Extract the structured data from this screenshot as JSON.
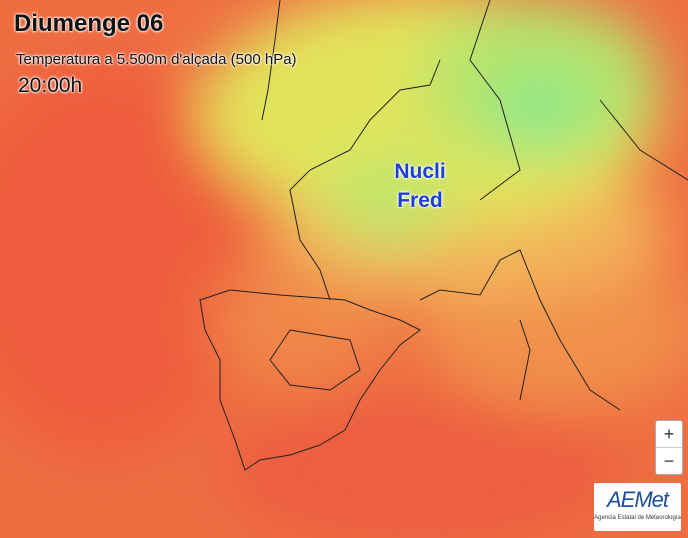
{
  "header": {
    "title": "Diumenge 06",
    "subtitle": "Temperatura a 5.500m d'alçada (500 hPa)",
    "time": "20:00h"
  },
  "annotation": {
    "lines": [
      "Nucli",
      "Fred"
    ]
  },
  "zoom": {
    "in": "+",
    "out": "−"
  },
  "logo": {
    "name": "AEMet",
    "caption": "Agencia Estatal de Meteorología"
  }
}
